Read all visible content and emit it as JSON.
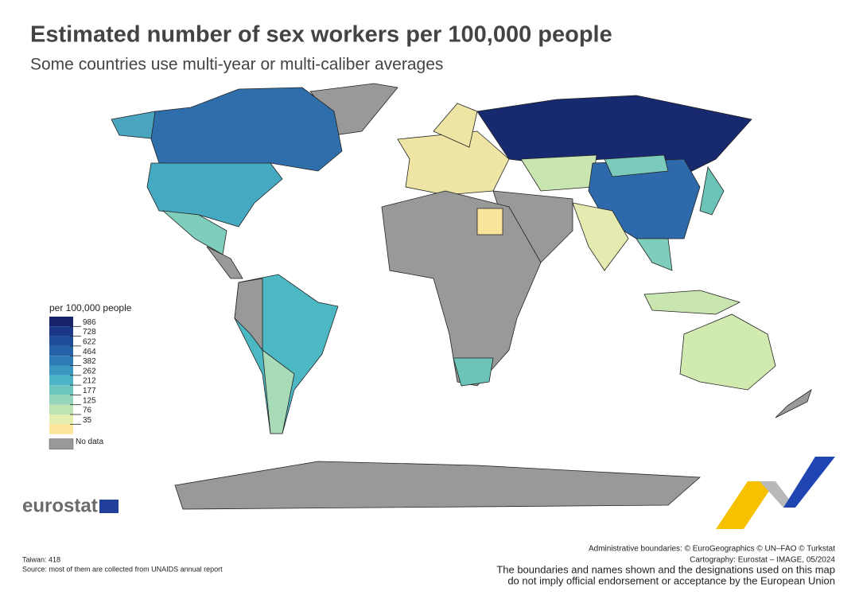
{
  "header": {
    "title": "Estimated number of sex workers per 100,000 people",
    "subtitle": "Some countries use multi-year or multi-caliber averages"
  },
  "legend": {
    "title": "per 100,000 people",
    "thresholds": [
      986,
      728,
      622,
      464,
      382,
      262,
      212,
      177,
      125,
      76,
      35
    ],
    "colors": [
      "#16236b",
      "#1b3787",
      "#1f4c9a",
      "#2661a8",
      "#2e7bb5",
      "#3a97bf",
      "#4db3c6",
      "#6cc5bf",
      "#93d4ba",
      "#bde3b3",
      "#e3eeb0",
      "#fbe69b"
    ],
    "no_data_label": "No data",
    "no_data_color": "#999999"
  },
  "notes": [
    "Taiwan: 418",
    "Source: most of them are collected from UNAIDS annual report"
  ],
  "credits": [
    "Administrative boundaries: © EuroGeographics © UN–FAO © Turkstat",
    "Cartography: Eurostat – IMAGE, 05/2024"
  ],
  "disclaimer": [
    "The boundaries and names shown and the designations used on this map",
    "do not imply official endorsement or acceptance by the European Union"
  ],
  "logo": "eurostat"
}
